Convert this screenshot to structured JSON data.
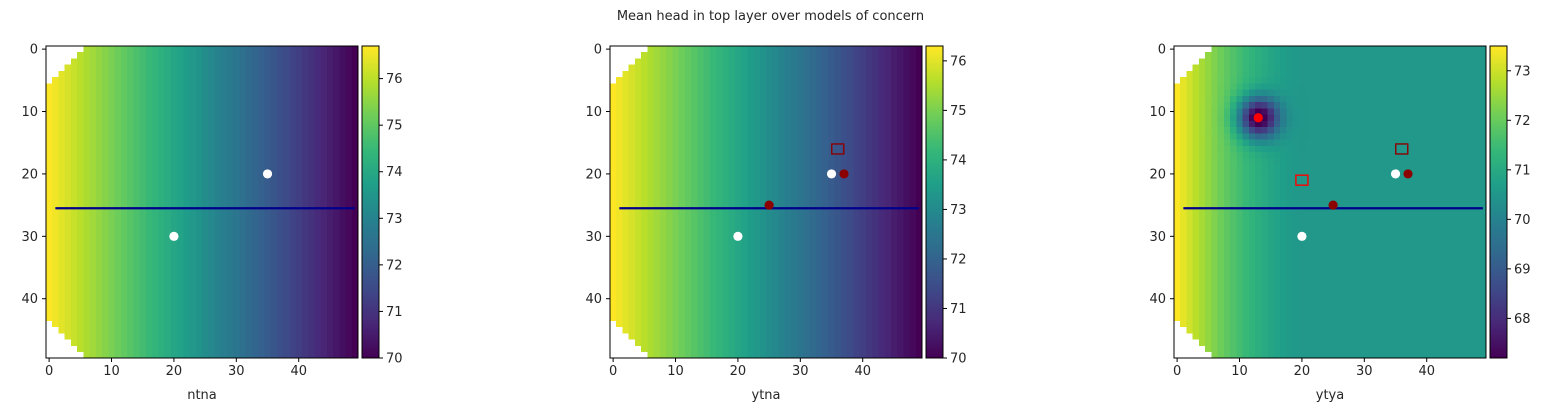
{
  "suptitle": "Mean head in top layer over models of concern",
  "chart_data": [
    {
      "type": "heatmap",
      "xlabel": "ntna",
      "x_ticks": [
        0,
        10,
        20,
        30,
        40
      ],
      "y_ticks": [
        0,
        10,
        20,
        30,
        40
      ],
      "xlim": [
        -0.5,
        49.5
      ],
      "ylim": [
        49.5,
        -0.5
      ],
      "grid": false,
      "colormap": "viridis",
      "field": "linear gradient west-to-east",
      "colorbar": {
        "min": 70.0,
        "max": 76.7,
        "ticks": [
          70,
          71,
          72,
          73,
          74,
          75,
          76
        ]
      },
      "line": {
        "x": [
          1,
          49
        ],
        "y": [
          25.5,
          25.5
        ],
        "color": "#00008b"
      },
      "points": [
        {
          "x": 35,
          "y": 20,
          "color": "#ffffff",
          "marker": "circle"
        },
        {
          "x": 20,
          "y": 30,
          "color": "#ffffff",
          "marker": "circle"
        }
      ],
      "squares": []
    },
    {
      "type": "heatmap",
      "xlabel": "ytna",
      "x_ticks": [
        0,
        10,
        20,
        30,
        40
      ],
      "y_ticks": [
        0,
        10,
        20,
        30,
        40
      ],
      "xlim": [
        -0.5,
        49.5
      ],
      "ylim": [
        49.5,
        -0.5
      ],
      "grid": false,
      "colormap": "viridis",
      "field": "linear gradient west-to-east",
      "colorbar": {
        "min": 70.0,
        "max": 76.3,
        "ticks": [
          70,
          71,
          72,
          73,
          74,
          75,
          76
        ]
      },
      "line": {
        "x": [
          1,
          49
        ],
        "y": [
          25.5,
          25.5
        ],
        "color": "#00008b"
      },
      "points": [
        {
          "x": 35,
          "y": 20,
          "color": "#ffffff",
          "marker": "circle"
        },
        {
          "x": 20,
          "y": 30,
          "color": "#ffffff",
          "marker": "circle"
        },
        {
          "x": 37,
          "y": 20,
          "color": "#8b0000",
          "marker": "circle"
        },
        {
          "x": 25,
          "y": 25,
          "color": "#8b0000",
          "marker": "circle"
        }
      ],
      "squares": [
        {
          "x": 36,
          "y": 16,
          "color": "#8b0000"
        }
      ]
    },
    {
      "type": "heatmap",
      "xlabel": "ytya",
      "x_ticks": [
        0,
        10,
        20,
        30,
        40
      ],
      "y_ticks": [
        0,
        10,
        20,
        30,
        40
      ],
      "xlim": [
        -0.5,
        49.5
      ],
      "ylim": [
        49.5,
        -0.5
      ],
      "grid": false,
      "colormap": "viridis",
      "field": "gradient with drawdown cone at well",
      "colorbar": {
        "min": 67.2,
        "max": 73.5,
        "ticks": [
          68,
          69,
          70,
          71,
          72,
          73
        ]
      },
      "line": {
        "x": [
          1,
          49
        ],
        "y": [
          25.5,
          25.5
        ],
        "color": "#00008b"
      },
      "points": [
        {
          "x": 13,
          "y": 11,
          "color": "#ff0000",
          "marker": "circle"
        },
        {
          "x": 35,
          "y": 20,
          "color": "#ffffff",
          "marker": "circle"
        },
        {
          "x": 20,
          "y": 30,
          "color": "#ffffff",
          "marker": "circle"
        },
        {
          "x": 37,
          "y": 20,
          "color": "#8b0000",
          "marker": "circle"
        },
        {
          "x": 25,
          "y": 25,
          "color": "#8b0000",
          "marker": "circle"
        }
      ],
      "squares": [
        {
          "x": 36,
          "y": 16,
          "color": "#8b0000"
        },
        {
          "x": 20,
          "y": 21,
          "color": "#ff0000"
        }
      ]
    }
  ]
}
